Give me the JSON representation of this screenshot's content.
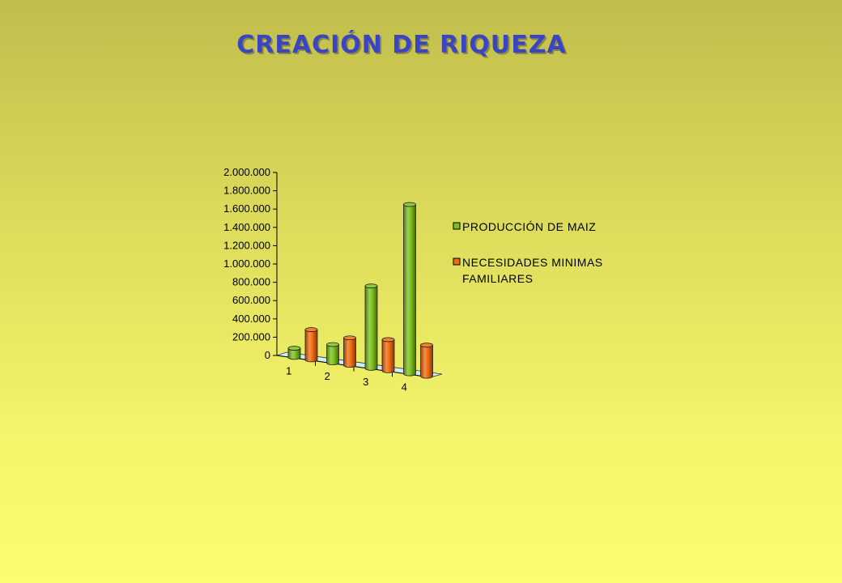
{
  "page": {
    "title": "CREACIÓN DE RIQUEZA"
  },
  "chart_data": {
    "type": "bar",
    "style": "3d-cylinder",
    "title": "CREACIÓN DE RIQUEZA",
    "categories": [
      "1",
      "2",
      "3",
      "4"
    ],
    "series": [
      {
        "name": "PRODUCCIÓN DE MAIZ",
        "color": "#7bbf1c",
        "values": [
          100000,
          200000,
          900000,
          1850000
        ]
      },
      {
        "name": "NECESIDADES MINIMAS FAMILIARES",
        "color": "#f26a0f",
        "values": [
          330000,
          300000,
          340000,
          340000
        ]
      }
    ],
    "ylim": [
      0,
      2000000
    ],
    "yticks": [
      "0",
      "200.000",
      "400.000",
      "600.000",
      "800.000",
      "1.000.000",
      "1.200.000",
      "1.400.000",
      "1.600.000",
      "1.800.000",
      "2.000.000"
    ],
    "legend_labels": [
      [
        "PRODUCCIÓN DE MAIZ"
      ],
      [
        "NECESIDADES MINIMAS",
        "FAMILIARES"
      ]
    ],
    "legend_position": "right",
    "grid": false
  }
}
